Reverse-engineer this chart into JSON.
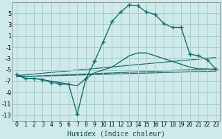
{
  "xlabel": "Humidex (Indice chaleur)",
  "background_color": "#ceeaea",
  "grid_color": "#aacccc",
  "line_color": "#1a6b6b",
  "xlim": [
    -0.5,
    23.5
  ],
  "ylim": [
    -14,
    7
  ],
  "yticks": [
    5,
    3,
    1,
    -1,
    -3,
    -5,
    -7,
    -9,
    -11,
    -13
  ],
  "xticks": [
    0,
    1,
    2,
    3,
    4,
    5,
    6,
    7,
    8,
    9,
    10,
    11,
    12,
    13,
    14,
    15,
    16,
    17,
    18,
    19,
    20,
    21,
    22,
    23
  ],
  "curve1_x": [
    0,
    1,
    2,
    3,
    4,
    5,
    6,
    7,
    8,
    9,
    10,
    11,
    12,
    13,
    14,
    15,
    16,
    17,
    18,
    19,
    20,
    21,
    22,
    23
  ],
  "curve1_y": [
    -5.8,
    -6.5,
    -6.5,
    -6.7,
    -7.2,
    -7.5,
    -7.5,
    -12.8,
    -6.5,
    -3.5,
    0.0,
    3.5,
    5.2,
    6.5,
    6.3,
    5.2,
    4.8,
    3.2,
    2.5,
    2.5,
    -2.2,
    -2.5,
    -3.2,
    -4.8
  ],
  "curve2_x": [
    0,
    1,
    2,
    3,
    4,
    5,
    6,
    7,
    8,
    9,
    10,
    11,
    12,
    13,
    14,
    15,
    16,
    17,
    18,
    19,
    20,
    21,
    22,
    23
  ],
  "curve2_y": [
    -5.8,
    -6.5,
    -6.5,
    -6.7,
    -7.0,
    -7.2,
    -7.5,
    -7.8,
    -6.5,
    -5.5,
    -5.0,
    -4.5,
    -3.5,
    -2.5,
    -2.0,
    -2.0,
    -2.5,
    -3.0,
    -3.5,
    -4.0,
    -4.5,
    -4.8,
    -4.8,
    -5.0
  ],
  "trend1_x": [
    0,
    23
  ],
  "trend1_y": [
    -6.0,
    -2.8
  ],
  "trend2_x": [
    0,
    23
  ],
  "trend2_y": [
    -6.2,
    -5.2
  ],
  "trend3_x": [
    0,
    23
  ],
  "trend3_y": [
    -6.2,
    -4.8
  ]
}
